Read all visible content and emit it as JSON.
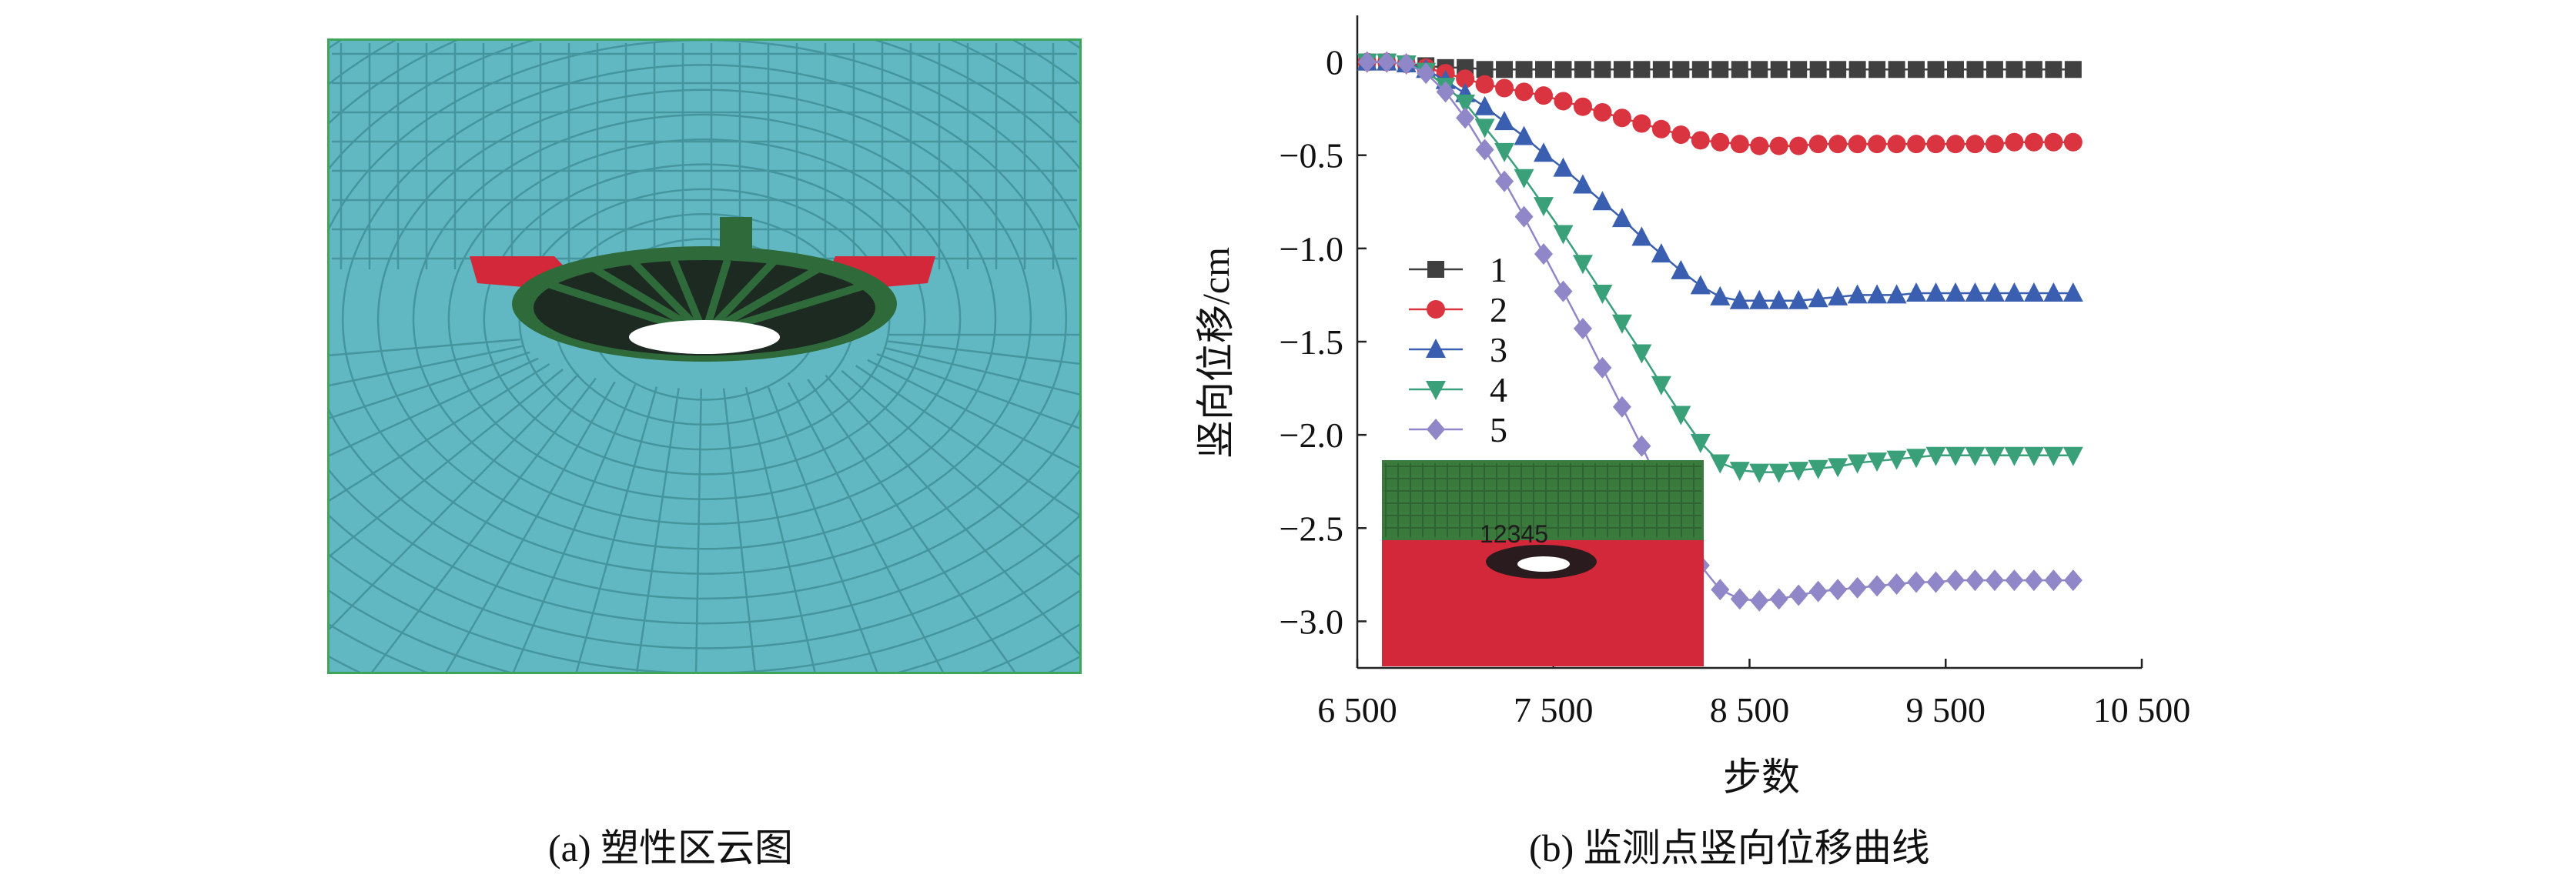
{
  "panel_a": {
    "caption": "(a) 塑性区云图",
    "colors": {
      "mesh_fill": "#62b8c2",
      "mesh_line": "#3f8f98",
      "border": "#3fa55b",
      "plastic_red": "#d2283a",
      "plastic_green": "#2e6a3a",
      "plastic_dark": "#1d2a22"
    }
  },
  "panel_b": {
    "caption": "(b) 监测点竖向位移曲线",
    "inset_labels": "12345",
    "inset_colors": {
      "top": "#3a7a3c",
      "bottom": "#d2283a"
    }
  },
  "chart_data": {
    "type": "line",
    "xlabel": "步数",
    "ylabel": "竖向位移/cm",
    "xlim": [
      6500,
      10500
    ],
    "ylim": [
      -3.25,
      0.25
    ],
    "xticks": [
      6500,
      7500,
      8500,
      9500,
      10500
    ],
    "xtick_labels": [
      "6 500",
      "7 500",
      "8 500",
      "9 500",
      "10 500"
    ],
    "yticks": [
      0,
      -0.5,
      -1.0,
      -1.5,
      -2.0,
      -2.5,
      -3.0
    ],
    "ytick_labels": [
      "0",
      "−0.5",
      "−1.0",
      "−1.5",
      "−2.0",
      "−2.5",
      "−3.0"
    ],
    "legend_position": "middle-left",
    "x": [
      6550,
      6650,
      6750,
      6850,
      6950,
      7050,
      7150,
      7250,
      7350,
      7450,
      7550,
      7650,
      7750,
      7850,
      7950,
      8050,
      8150,
      8250,
      8350,
      8450,
      8550,
      8650,
      8750,
      8850,
      8950,
      9050,
      9150,
      9250,
      9350,
      9450,
      9550,
      9650,
      9750,
      9850,
      9950,
      10050,
      10150
    ],
    "series": [
      {
        "name": "1",
        "color": "#404040",
        "marker": "square",
        "values": [
          0,
          0,
          -0.01,
          -0.02,
          -0.03,
          -0.03,
          -0.04,
          -0.04,
          -0.04,
          -0.04,
          -0.04,
          -0.04,
          -0.04,
          -0.04,
          -0.04,
          -0.04,
          -0.04,
          -0.04,
          -0.04,
          -0.04,
          -0.04,
          -0.04,
          -0.04,
          -0.04,
          -0.04,
          -0.04,
          -0.04,
          -0.04,
          -0.04,
          -0.04,
          -0.04,
          -0.04,
          -0.04,
          -0.04,
          -0.04,
          -0.04,
          -0.04
        ]
      },
      {
        "name": "2",
        "color": "#d9343f",
        "marker": "circle",
        "values": [
          0,
          0,
          -0.01,
          -0.03,
          -0.06,
          -0.09,
          -0.12,
          -0.14,
          -0.16,
          -0.18,
          -0.21,
          -0.24,
          -0.27,
          -0.3,
          -0.33,
          -0.36,
          -0.39,
          -0.42,
          -0.43,
          -0.44,
          -0.45,
          -0.45,
          -0.45,
          -0.44,
          -0.44,
          -0.44,
          -0.44,
          -0.44,
          -0.44,
          -0.44,
          -0.44,
          -0.44,
          -0.44,
          -0.43,
          -0.43,
          -0.43,
          -0.43
        ]
      },
      {
        "name": "3",
        "color": "#3a5fb0",
        "marker": "triangle-up",
        "values": [
          0,
          0,
          -0.01,
          -0.04,
          -0.1,
          -0.17,
          -0.24,
          -0.32,
          -0.4,
          -0.49,
          -0.57,
          -0.66,
          -0.75,
          -0.84,
          -0.94,
          -1.03,
          -1.12,
          -1.2,
          -1.26,
          -1.28,
          -1.28,
          -1.28,
          -1.28,
          -1.27,
          -1.26,
          -1.25,
          -1.25,
          -1.25,
          -1.24,
          -1.24,
          -1.24,
          -1.24,
          -1.24,
          -1.24,
          -1.24,
          -1.24,
          -1.24
        ]
      },
      {
        "name": "4",
        "color": "#3aa07a",
        "marker": "triangle-down",
        "values": [
          0,
          0,
          -0.01,
          -0.05,
          -0.13,
          -0.22,
          -0.35,
          -0.48,
          -0.62,
          -0.77,
          -0.92,
          -1.08,
          -1.24,
          -1.4,
          -1.56,
          -1.73,
          -1.89,
          -2.04,
          -2.15,
          -2.19,
          -2.2,
          -2.2,
          -2.19,
          -2.18,
          -2.17,
          -2.15,
          -2.14,
          -2.13,
          -2.12,
          -2.11,
          -2.11,
          -2.11,
          -2.11,
          -2.11,
          -2.11,
          -2.11,
          -2.11
        ]
      },
      {
        "name": "5",
        "color": "#8f87c8",
        "marker": "diamond",
        "values": [
          0,
          0,
          -0.01,
          -0.06,
          -0.16,
          -0.3,
          -0.47,
          -0.64,
          -0.83,
          -1.03,
          -1.23,
          -1.43,
          -1.64,
          -1.85,
          -2.06,
          -2.28,
          -2.49,
          -2.7,
          -2.83,
          -2.88,
          -2.89,
          -2.88,
          -2.86,
          -2.84,
          -2.83,
          -2.82,
          -2.81,
          -2.8,
          -2.79,
          -2.79,
          -2.78,
          -2.78,
          -2.78,
          -2.78,
          -2.78,
          -2.78,
          -2.78
        ]
      }
    ]
  }
}
